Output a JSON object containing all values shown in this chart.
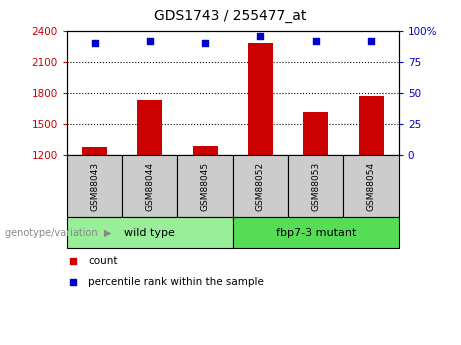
{
  "title": "GDS1743 / 255477_at",
  "samples": [
    "GSM88043",
    "GSM88044",
    "GSM88045",
    "GSM88052",
    "GSM88053",
    "GSM88054"
  ],
  "counts": [
    1280,
    1730,
    1285,
    2280,
    1620,
    1770
  ],
  "percentile_ranks": [
    90,
    92,
    90,
    96,
    92,
    92
  ],
  "ylim_left": [
    1200,
    2400
  ],
  "ylim_right": [
    0,
    100
  ],
  "yticks_left": [
    1200,
    1500,
    1800,
    2100,
    2400
  ],
  "yticks_right": [
    0,
    25,
    50,
    75,
    100
  ],
  "bar_color": "#cc0000",
  "dot_color": "#0000cc",
  "left_tick_color": "#cc0000",
  "right_tick_color": "#0000cc",
  "groups": [
    {
      "label": "wild type",
      "start": 0,
      "end": 2,
      "color": "#99ee99"
    },
    {
      "label": "fbp7-3 mutant",
      "start": 3,
      "end": 5,
      "color": "#55dd55"
    }
  ],
  "genotype_label": "genotype/variation",
  "legend_count_label": "count",
  "legend_pct_label": "percentile rank within the sample",
  "bar_width": 0.45,
  "sample_bg_color": "#cccccc",
  "base_value": 1200,
  "grid_yticks": [
    1500,
    1800,
    2100
  ]
}
